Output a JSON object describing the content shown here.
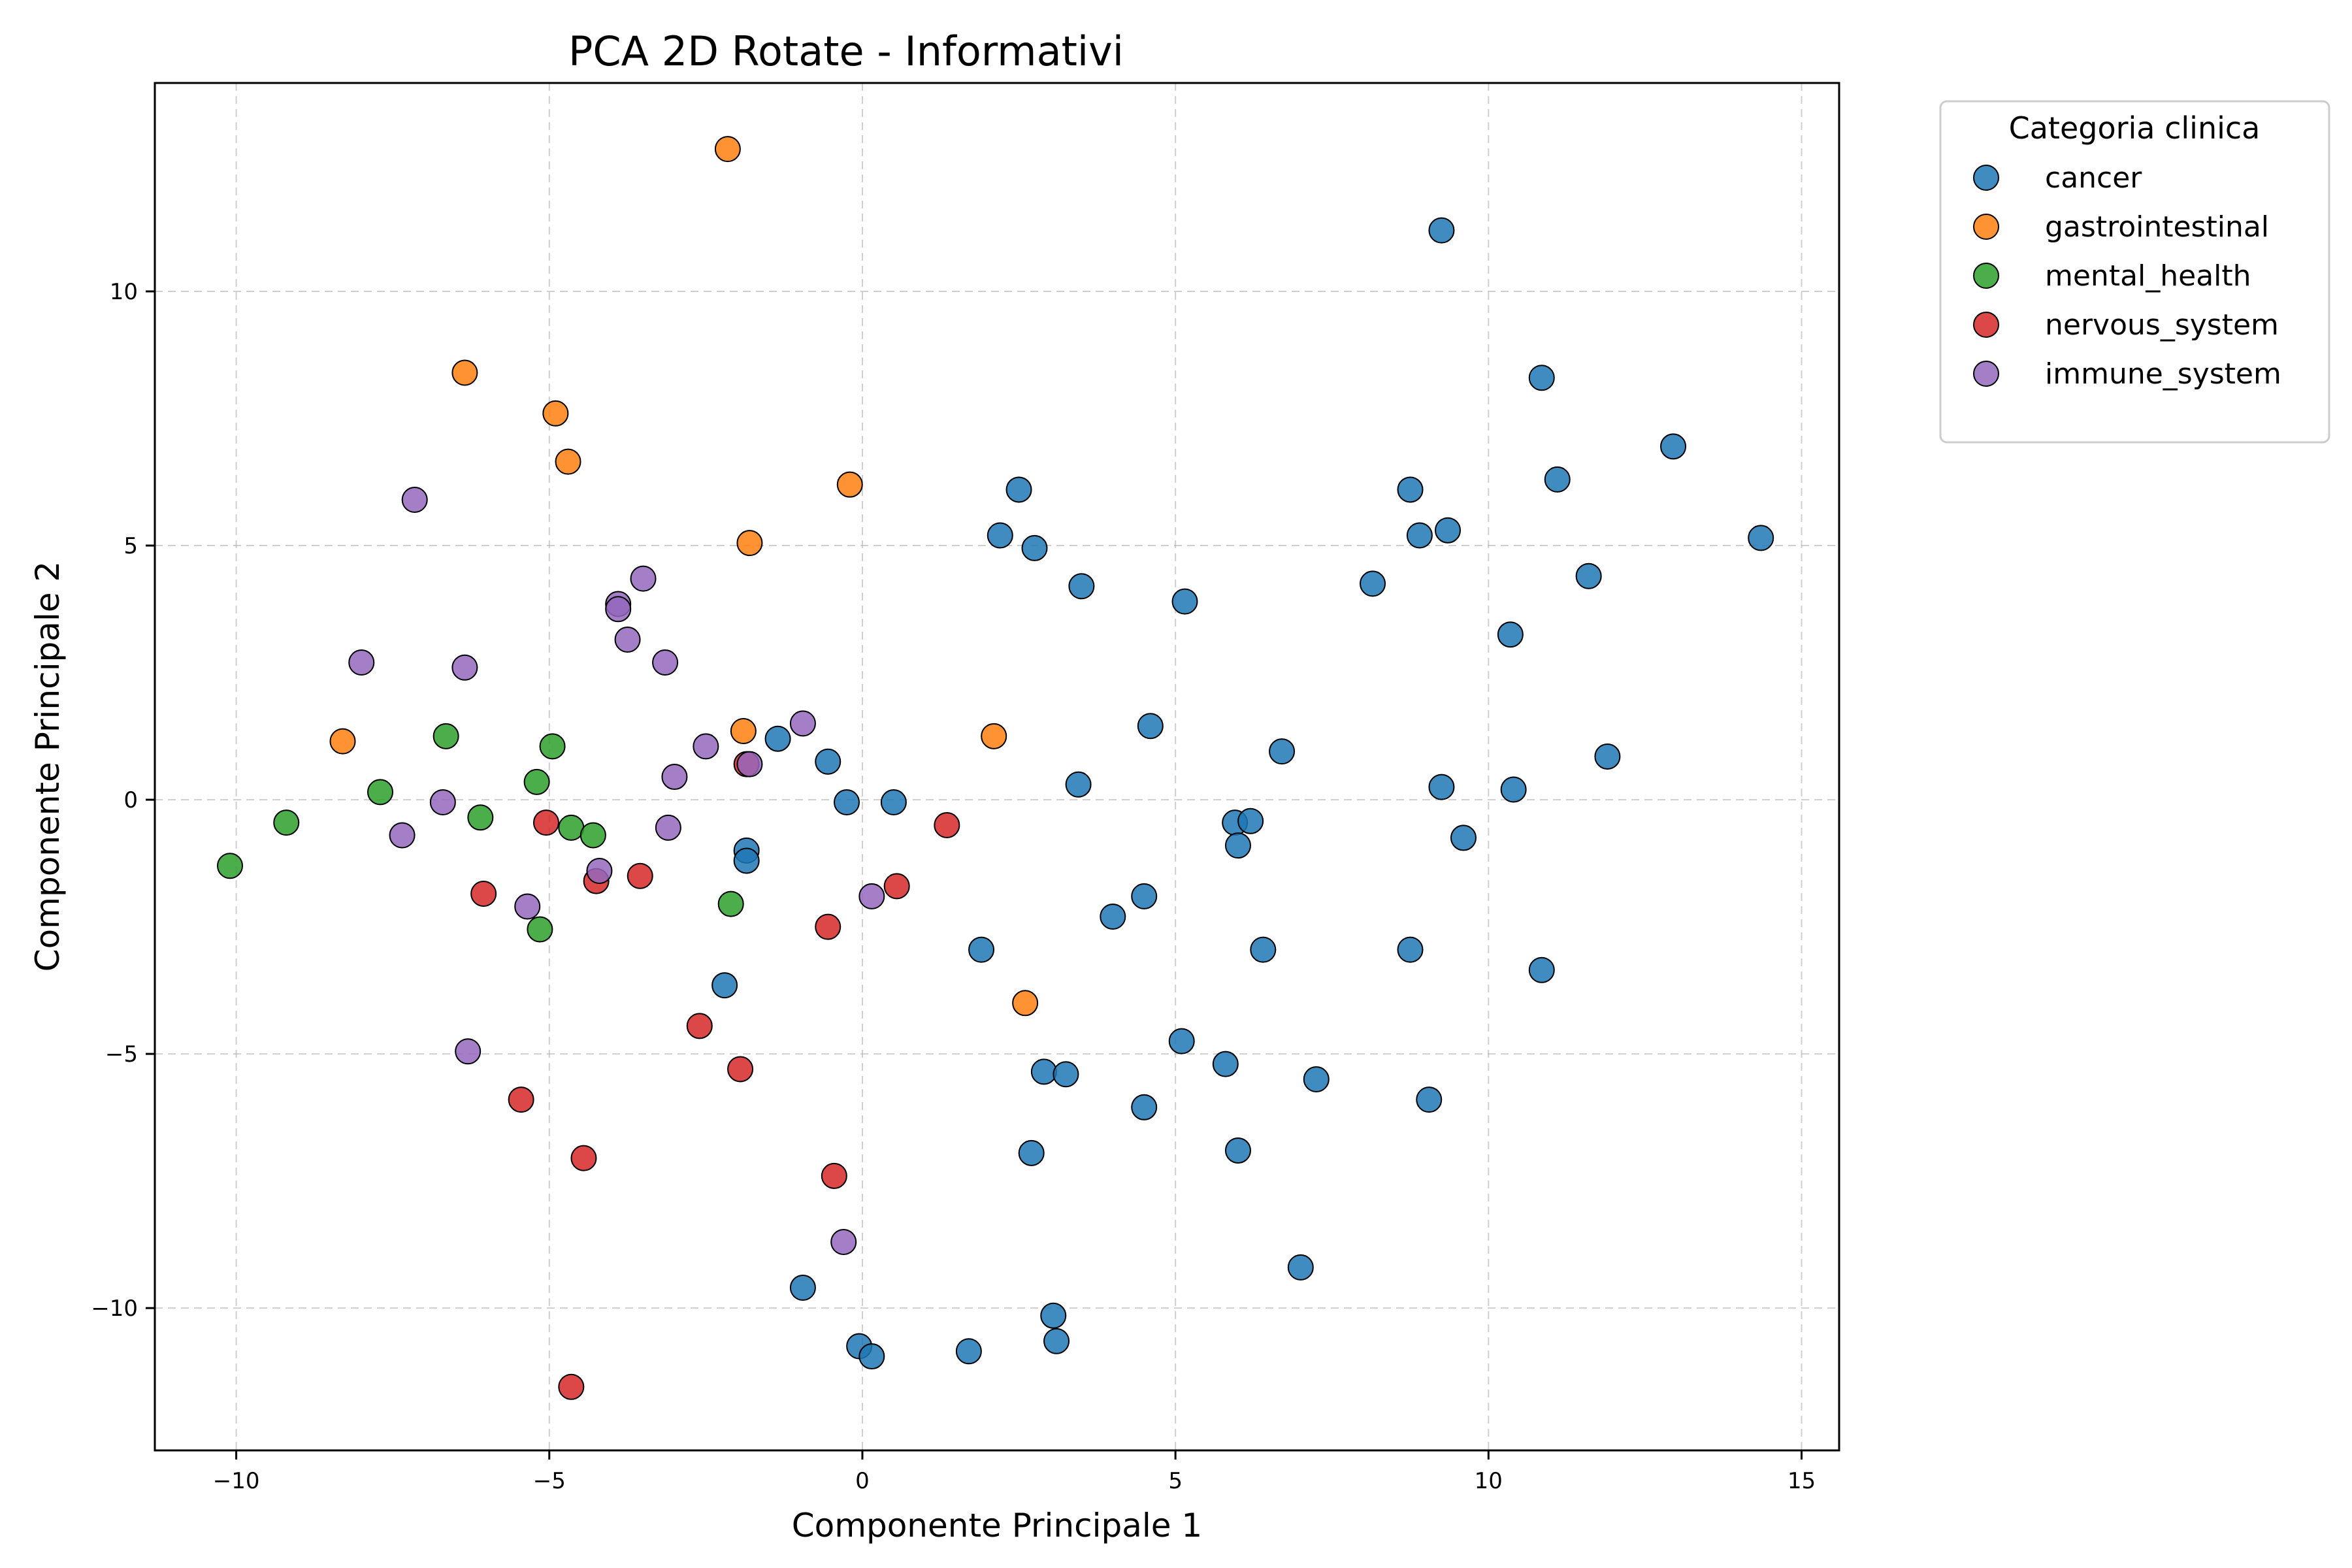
{
  "chart_data": {
    "type": "scatter",
    "title": "PCA 2D Rotate -  Informativi",
    "xlabel": "Componente Principale 1",
    "ylabel": "Componente Principale 2",
    "xlim": [
      -11.3,
      15.6
    ],
    "ylim": [
      -12.8,
      14.1
    ],
    "xticks": [
      -10,
      -5,
      0,
      5,
      10,
      15
    ],
    "yticks": [
      -10,
      -5,
      0,
      5,
      10
    ],
    "grid": true,
    "legend": {
      "title": "Categoria clinica",
      "placement": "outside-top-right"
    },
    "series": [
      {
        "name": "cancer",
        "color": "#1f77b4",
        "points": [
          [
            9.25,
            11.2
          ],
          [
            10.85,
            8.3
          ],
          [
            12.95,
            6.95
          ],
          [
            11.1,
            6.3
          ],
          [
            8.75,
            6.1
          ],
          [
            9.35,
            5.3
          ],
          [
            8.9,
            5.2
          ],
          [
            14.35,
            5.15
          ],
          [
            11.6,
            4.4
          ],
          [
            8.15,
            4.25
          ],
          [
            10.35,
            3.25
          ],
          [
            2.5,
            6.1
          ],
          [
            2.2,
            5.2
          ],
          [
            2.75,
            4.95
          ],
          [
            3.5,
            4.2
          ],
          [
            5.15,
            3.9
          ],
          [
            4.6,
            1.45
          ],
          [
            6.7,
            0.95
          ],
          [
            11.9,
            0.85
          ],
          [
            9.25,
            0.25
          ],
          [
            10.4,
            0.2
          ],
          [
            3.45,
            0.3
          ],
          [
            5.95,
            -0.45
          ],
          [
            6.2,
            -0.42
          ],
          [
            9.6,
            -0.75
          ],
          [
            6.0,
            -0.9
          ],
          [
            -1.35,
            1.2
          ],
          [
            -0.55,
            0.75
          ],
          [
            -0.25,
            -0.05
          ],
          [
            0.5,
            -0.05
          ],
          [
            -1.85,
            -1.0
          ],
          [
            -1.85,
            -1.2
          ],
          [
            4.0,
            -2.3
          ],
          [
            4.5,
            -1.9
          ],
          [
            1.9,
            -2.95
          ],
          [
            6.4,
            -2.95
          ],
          [
            8.75,
            -2.95
          ],
          [
            10.85,
            -3.35
          ],
          [
            -2.2,
            -3.65
          ],
          [
            5.1,
            -4.75
          ],
          [
            5.8,
            -5.2
          ],
          [
            2.9,
            -5.35
          ],
          [
            3.25,
            -5.4
          ],
          [
            7.25,
            -5.5
          ],
          [
            9.05,
            -5.9
          ],
          [
            4.5,
            -6.05
          ],
          [
            2.7,
            -6.95
          ],
          [
            6.0,
            -6.9
          ],
          [
            7.0,
            -9.2
          ],
          [
            -0.95,
            -9.6
          ],
          [
            3.05,
            -10.15
          ],
          [
            3.1,
            -10.65
          ],
          [
            -0.05,
            -10.75
          ],
          [
            0.15,
            -10.95
          ],
          [
            1.7,
            -10.85
          ]
        ]
      },
      {
        "name": "gastrointestinal",
        "color": "#ff7f0e",
        "points": [
          [
            -2.15,
            12.8
          ],
          [
            -6.35,
            8.4
          ],
          [
            -4.9,
            7.6
          ],
          [
            -4.7,
            6.65
          ],
          [
            -0.2,
            6.2
          ],
          [
            -1.8,
            5.05
          ],
          [
            -8.3,
            1.15
          ],
          [
            -1.9,
            1.35
          ],
          [
            2.1,
            1.25
          ],
          [
            2.6,
            -4.0
          ]
        ]
      },
      {
        "name": "mental_health",
        "color": "#2ca02c",
        "points": [
          [
            -6.65,
            1.25
          ],
          [
            -4.95,
            1.05
          ],
          [
            -5.2,
            0.35
          ],
          [
            -7.7,
            0.15
          ],
          [
            -9.2,
            -0.45
          ],
          [
            -6.1,
            -0.35
          ],
          [
            -4.65,
            -0.55
          ],
          [
            -4.3,
            -0.7
          ],
          [
            -10.1,
            -1.3
          ],
          [
            -2.1,
            -2.05
          ],
          [
            -5.15,
            -2.55
          ]
        ]
      },
      {
        "name": "nervous_system",
        "color": "#d62728",
        "points": [
          [
            -1.85,
            0.7
          ],
          [
            -5.05,
            -0.45
          ],
          [
            1.35,
            -0.5
          ],
          [
            -3.55,
            -1.5
          ],
          [
            -4.25,
            -1.6
          ],
          [
            0.55,
            -1.7
          ],
          [
            -6.05,
            -1.85
          ],
          [
            -0.55,
            -2.5
          ],
          [
            -2.6,
            -4.45
          ],
          [
            -1.95,
            -5.3
          ],
          [
            -5.45,
            -5.9
          ],
          [
            -4.45,
            -7.05
          ],
          [
            -0.45,
            -7.4
          ],
          [
            -4.65,
            -11.55
          ]
        ]
      },
      {
        "name": "immune_system",
        "color": "#9467bd",
        "points": [
          [
            -7.15,
            5.9
          ],
          [
            -3.5,
            4.35
          ],
          [
            -3.9,
            3.85
          ],
          [
            -3.9,
            3.75
          ],
          [
            -3.75,
            3.15
          ],
          [
            -8.0,
            2.7
          ],
          [
            -3.15,
            2.7
          ],
          [
            -6.35,
            2.6
          ],
          [
            -0.95,
            1.5
          ],
          [
            -2.5,
            1.05
          ],
          [
            -1.8,
            0.7
          ],
          [
            -3.0,
            0.45
          ],
          [
            -6.7,
            -0.05
          ],
          [
            -3.1,
            -0.55
          ],
          [
            -7.35,
            -0.7
          ],
          [
            -4.2,
            -1.4
          ],
          [
            0.15,
            -1.9
          ],
          [
            -5.35,
            -2.1
          ],
          [
            -6.3,
            -4.95
          ],
          [
            -0.3,
            -8.7
          ]
        ]
      }
    ]
  }
}
